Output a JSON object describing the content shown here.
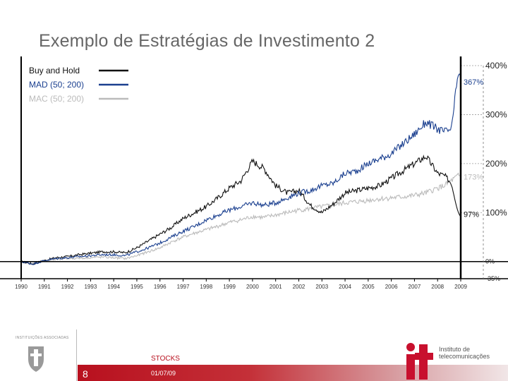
{
  "slide": {
    "title": "Exemplo de Estratégias de Investimento 2",
    "page_number": "8",
    "footer_section": "STOCKS",
    "footer_date": "01/07/09",
    "institution_label": "INSTITUIÇÕES ASSOCIADAS",
    "it_logo_line1": "Instituto de",
    "it_logo_line2": "telecomunicações"
  },
  "chart_data": {
    "type": "line",
    "x_ticks": [
      "1990",
      "1991",
      "1992",
      "1993",
      "1994",
      "1995",
      "1996",
      "1997",
      "1998",
      "1999",
      "2000",
      "2001",
      "2002",
      "2003",
      "2004",
      "2005",
      "2006",
      "2007",
      "2008",
      "2009"
    ],
    "y_ticks": [
      {
        "value": 400,
        "label": "400%"
      },
      {
        "value": 300,
        "label": "300%"
      },
      {
        "value": 200,
        "label": "200%"
      },
      {
        "value": 100,
        "label": "100%"
      },
      {
        "value": 0,
        "label": "0%"
      },
      {
        "value": -35,
        "label": "-35%"
      }
    ],
    "ylim": [
      -35,
      400
    ],
    "xlim": [
      1990,
      2009
    ],
    "legend_position": "top-left",
    "series": [
      {
        "name": "Buy and Hold",
        "color": "#111111",
        "x": [
          1990,
          1990.5,
          1991,
          1991.5,
          1992,
          1992.5,
          1993,
          1993.5,
          1994,
          1994.5,
          1995,
          1995.5,
          1996,
          1996.5,
          1997,
          1997.5,
          1998,
          1998.5,
          1999,
          1999.5,
          2000,
          2000.5,
          2001,
          2001.5,
          2002,
          2002.5,
          2003,
          2003.5,
          2004,
          2004.5,
          2005,
          2005.5,
          2006,
          2006.5,
          2007,
          2007.5,
          2008,
          2008.3,
          2008.6,
          2008.9,
          2009
        ],
        "y": [
          0,
          -5,
          2,
          8,
          10,
          14,
          17,
          20,
          20,
          18,
          28,
          42,
          56,
          70,
          88,
          100,
          112,
          130,
          150,
          165,
          205,
          190,
          155,
          140,
          145,
          115,
          100,
          118,
          140,
          145,
          150,
          155,
          170,
          185,
          200,
          215,
          180,
          175,
          160,
          100,
          97
        ]
      },
      {
        "name": "MAD (50; 200)",
        "color": "#1a3f8f",
        "x": [
          1990,
          1990.5,
          1991,
          1991.5,
          1992,
          1992.5,
          1993,
          1993.5,
          1994,
          1994.5,
          1995,
          1995.5,
          1996,
          1996.5,
          1997,
          1997.5,
          1998,
          1998.5,
          1999,
          1999.5,
          2000,
          2000.5,
          2001,
          2001.5,
          2002,
          2002.5,
          2003,
          2003.5,
          2004,
          2004.5,
          2005,
          2005.5,
          2006,
          2006.5,
          2007,
          2007.5,
          2008,
          2008.3,
          2008.6,
          2008.9,
          2009
        ],
        "y": [
          0,
          -5,
          2,
          6,
          8,
          10,
          12,
          14,
          14,
          12,
          20,
          28,
          38,
          50,
          62,
          72,
          85,
          95,
          105,
          112,
          120,
          115,
          120,
          130,
          140,
          145,
          155,
          160,
          180,
          185,
          200,
          210,
          220,
          240,
          260,
          285,
          270,
          265,
          270,
          390,
          367
        ]
      },
      {
        "name": "MAC (50; 200)",
        "color": "#bbbbbb",
        "x": [
          1990,
          1990.5,
          1991,
          1991.5,
          1992,
          1992.5,
          1993,
          1993.5,
          1994,
          1994.5,
          1995,
          1995.5,
          1996,
          1996.5,
          1997,
          1997.5,
          1998,
          1998.5,
          1999,
          1999.5,
          2000,
          2000.5,
          2001,
          2001.5,
          2002,
          2002.5,
          2003,
          2003.5,
          2004,
          2004.5,
          2005,
          2005.5,
          2006,
          2006.5,
          2007,
          2007.5,
          2008,
          2008.3,
          2008.6,
          2008.9,
          2009
        ],
        "y": [
          0,
          -5,
          2,
          4,
          6,
          7,
          8,
          9,
          8,
          6,
          12,
          20,
          28,
          40,
          50,
          58,
          65,
          72,
          80,
          85,
          92,
          90,
          95,
          100,
          105,
          108,
          112,
          115,
          120,
          122,
          125,
          128,
          130,
          132,
          135,
          140,
          150,
          155,
          165,
          175,
          173
        ]
      }
    ],
    "annotations": [
      {
        "text": "367%",
        "x": 2009,
        "y": 367,
        "color": "#1a3f8f"
      },
      {
        "text": "173%",
        "x": 2009,
        "y": 173,
        "color": "#bbbbbb"
      },
      {
        "text": "97%",
        "x": 2009,
        "y": 97,
        "color": "#111111"
      }
    ]
  }
}
